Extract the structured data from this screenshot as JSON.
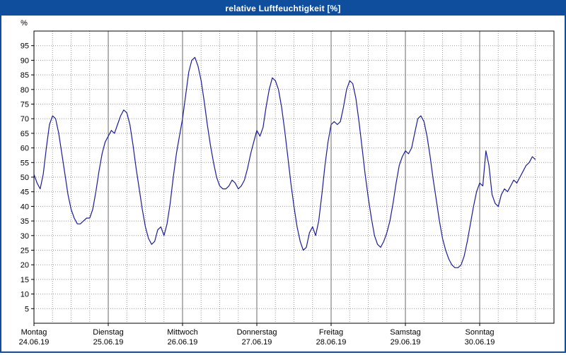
{
  "window": {
    "title": "relative Luftfeuchtigkeit [%]"
  },
  "colors": {
    "titlebar": "#0f4e9c",
    "frame": "#0f4e9c",
    "line": "#1c1c9c",
    "grid": "#9a9a9a"
  },
  "chart_data": {
    "type": "line",
    "title": "relative Luftfeuchtigkeit [%]",
    "ylabel": "%",
    "xlabel": "",
    "ylim": [
      0,
      100
    ],
    "y_ticks": [
      5,
      10,
      15,
      20,
      25,
      30,
      35,
      40,
      45,
      50,
      55,
      60,
      65,
      70,
      75,
      80,
      85,
      90,
      95
    ],
    "grid": "dotted, minor vertical every 6h, solid line at day boundaries",
    "legend": "none",
    "hours_per_day": 24,
    "minor_x_step_hours": 6,
    "days": [
      {
        "name": "Montag",
        "date": "24.06.19"
      },
      {
        "name": "Dienstag",
        "date": "25.06.19"
      },
      {
        "name": "Mittwoch",
        "date": "26.06.19"
      },
      {
        "name": "Donnerstag",
        "date": "27.06.19"
      },
      {
        "name": "Freitag",
        "date": "28.06.19"
      },
      {
        "name": "Samstag",
        "date": "29.06.19"
      },
      {
        "name": "Sonntag",
        "date": "30.06.19"
      }
    ],
    "sampling": "hourly values starting Montag 00:00, ending Sonntag ~18:00",
    "values": [
      51,
      48,
      46,
      51,
      60,
      68,
      71,
      70,
      65,
      58,
      51,
      44,
      39,
      36,
      34,
      34,
      35,
      36,
      36,
      39,
      45,
      52,
      58,
      62,
      64,
      66,
      65,
      68,
      71,
      73,
      72,
      68,
      61,
      53,
      46,
      39,
      33,
      29,
      27,
      28,
      32,
      33,
      30,
      34,
      41,
      50,
      58,
      64,
      70,
      78,
      86,
      90,
      91,
      88,
      83,
      76,
      68,
      61,
      55,
      50,
      47,
      46,
      46,
      47,
      49,
      48,
      46,
      47,
      49,
      53,
      58,
      62,
      66,
      64,
      67,
      74,
      80,
      84,
      83,
      80,
      74,
      66,
      57,
      48,
      40,
      33,
      28,
      25,
      26,
      31,
      33,
      30,
      35,
      44,
      54,
      62,
      68,
      69,
      68,
      69,
      74,
      80,
      83,
      82,
      77,
      69,
      60,
      51,
      43,
      36,
      30,
      27,
      26,
      28,
      31,
      35,
      41,
      48,
      54,
      57,
      59,
      58,
      60,
      65,
      70,
      71,
      69,
      64,
      57,
      49,
      42,
      35,
      29,
      25,
      22,
      20,
      19,
      19,
      20,
      23,
      28,
      34,
      40,
      45,
      48,
      47,
      59,
      54,
      44,
      41,
      40,
      44,
      46,
      45,
      47,
      49,
      48,
      50,
      52,
      54,
      55,
      57,
      56
    ]
  }
}
